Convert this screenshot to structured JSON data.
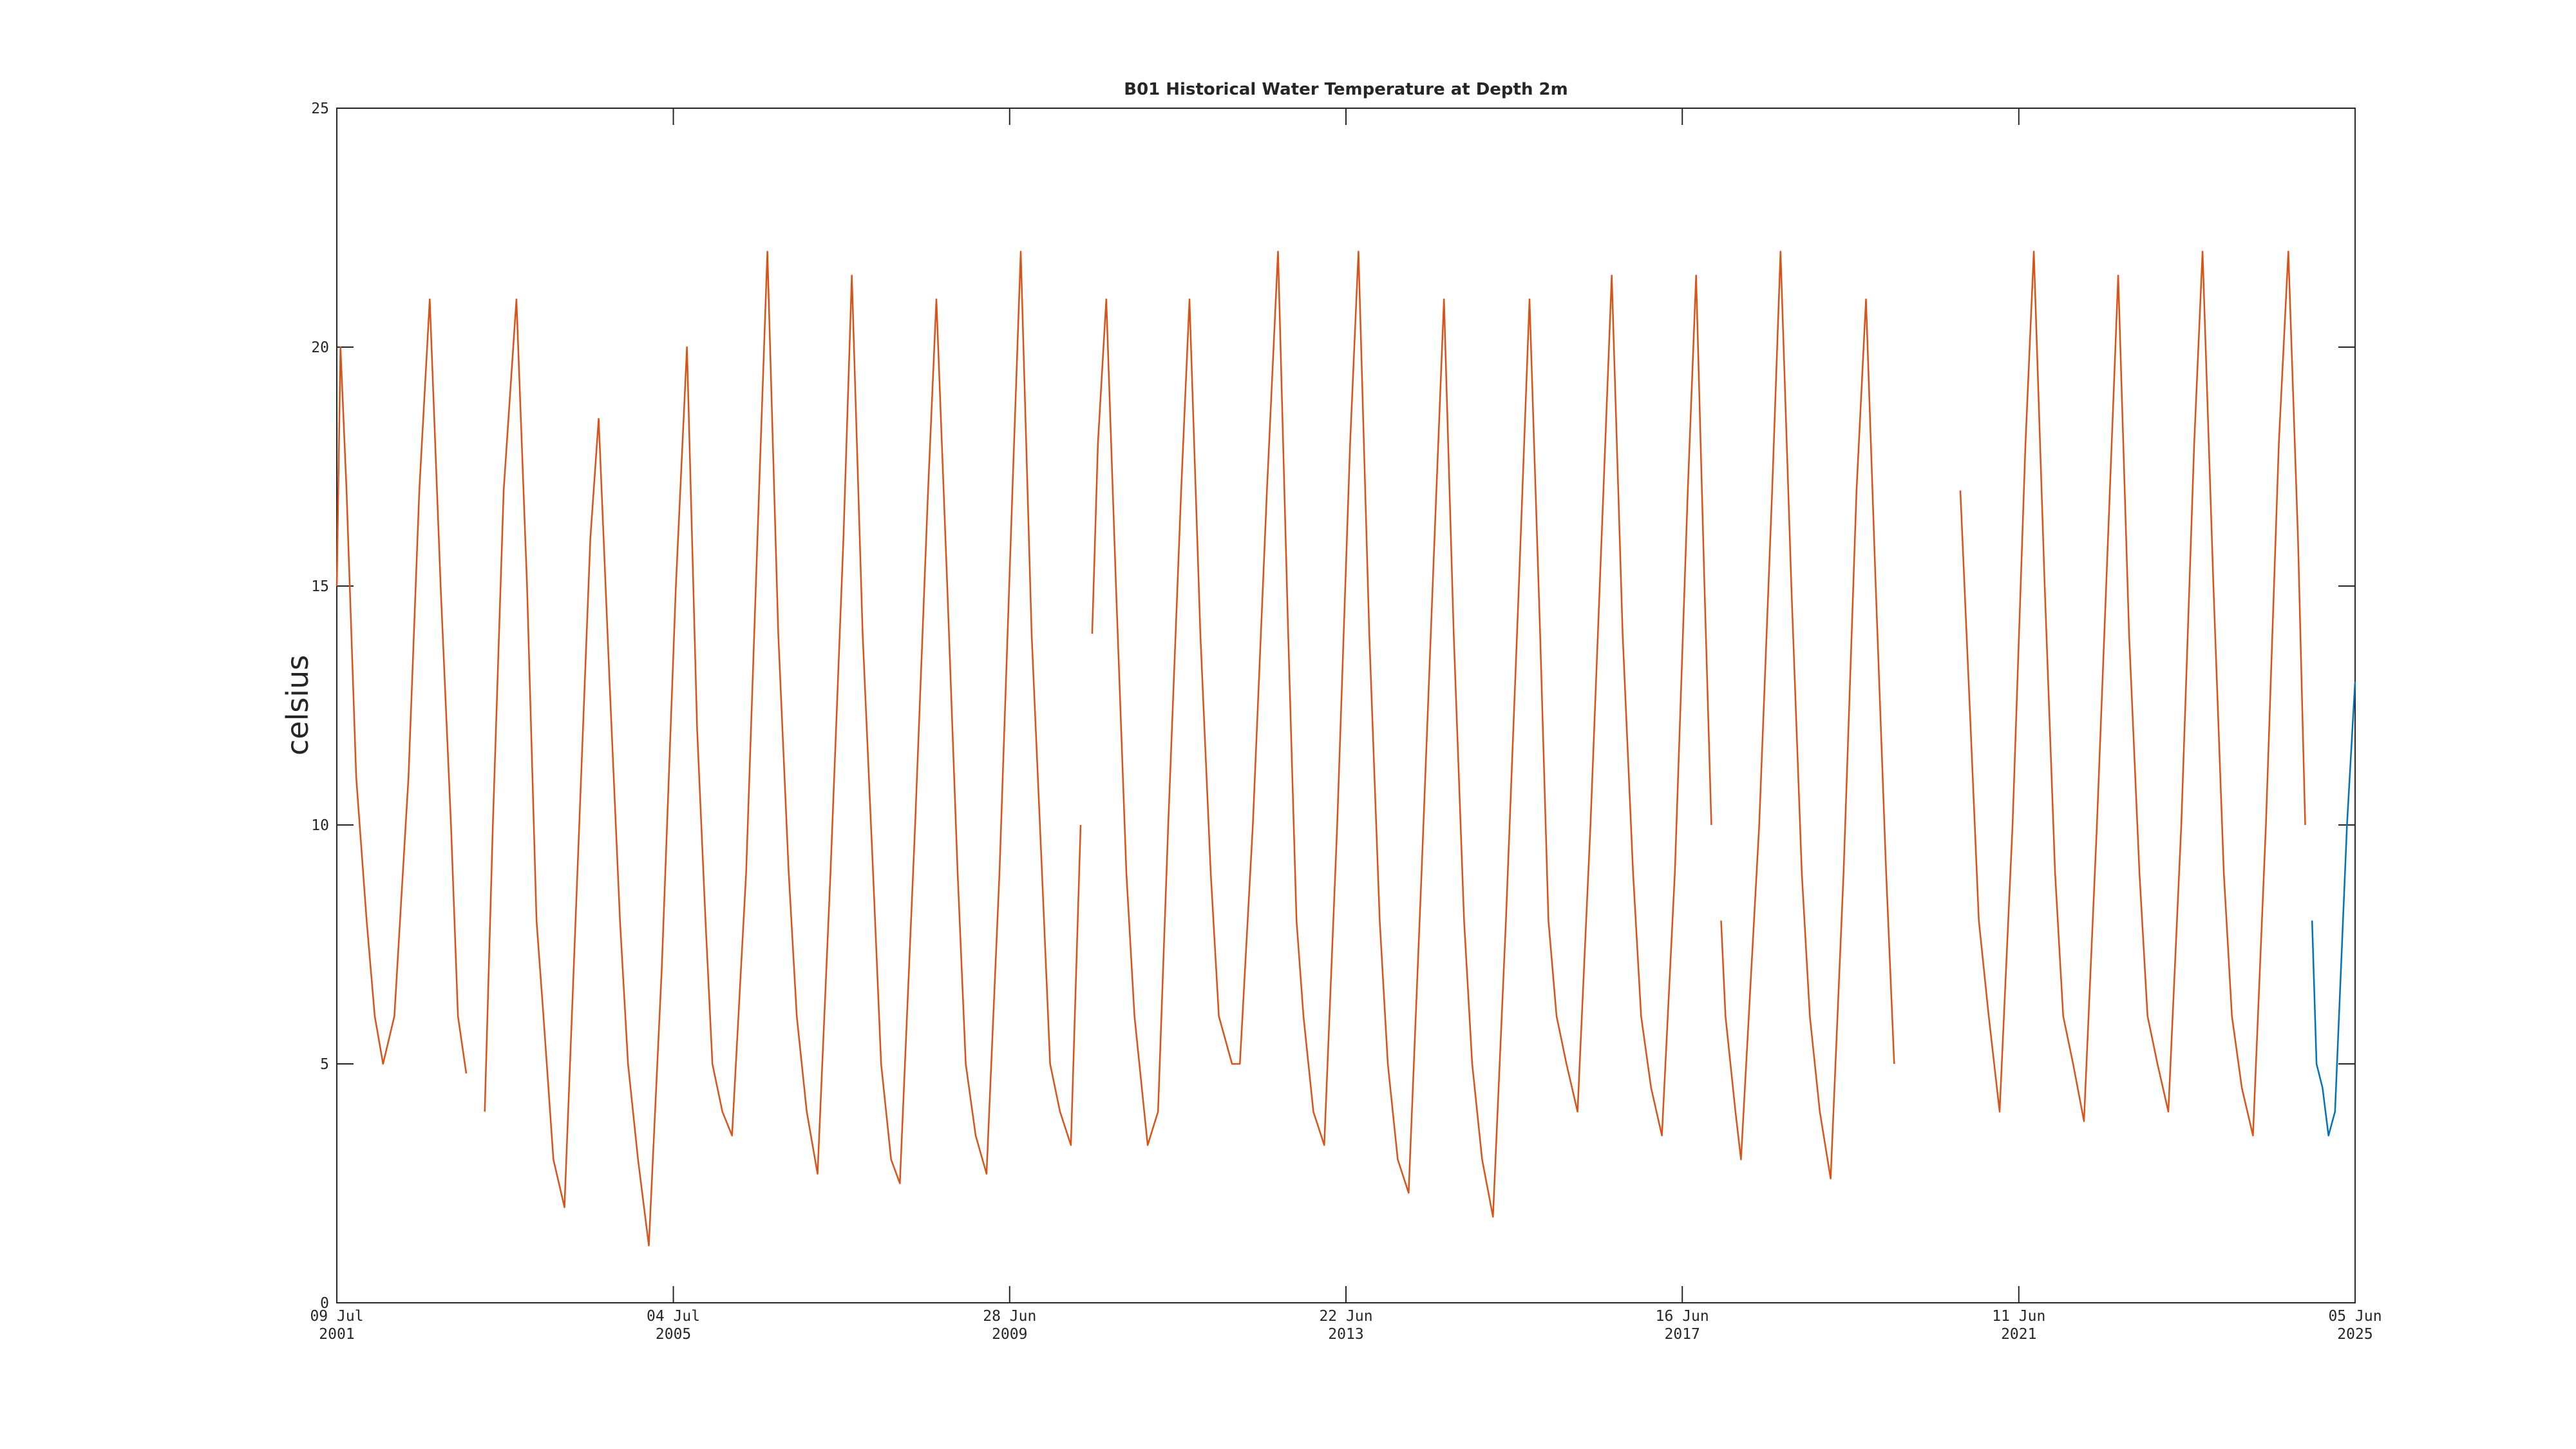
{
  "chart_data": {
    "type": "line",
    "title": "B01 Historical Water Temperature at Depth 2m",
    "ylabel": "celsius",
    "xlim": [
      "2001-07-09",
      "2025-06-05"
    ],
    "xticks": [
      {
        "value": "2001-07-09",
        "label": "09 Jul 2001"
      },
      {
        "value": "2005-07-04",
        "label": "04 Jul 2005"
      },
      {
        "value": "2009-06-28",
        "label": "28 Jun 2009"
      },
      {
        "value": "2013-06-22",
        "label": "22 Jun 2013"
      },
      {
        "value": "2017-06-16",
        "label": "16 Jun 2017"
      },
      {
        "value": "2021-06-11",
        "label": "11 Jun 2021"
      },
      {
        "value": "2025-06-05",
        "label": "05 Jun 2025"
      }
    ],
    "ylim": [
      0,
      25
    ],
    "yticks": [
      0,
      5,
      10,
      15,
      20,
      25
    ],
    "grid": false,
    "series": [
      {
        "color": "#d95319",
        "x": [
          "2001-07-09",
          "2001-07-25",
          "2001-08-20",
          "2001-10-01",
          "2001-11-15",
          "2001-12-20",
          "2002-01-25",
          "2002-03-15",
          "2002-05-15",
          "2002-07-01",
          "2002-08-15",
          "2002-10-01",
          "2002-11-15",
          "2002-12-15",
          "2003-01-20",
          "2003-02-15",
          "2003-04-10",
          "2003-05-15",
          "2003-07-01",
          "2003-08-25",
          "2003-10-10",
          "2003-11-20",
          "2003-12-20",
          "2004-02-01",
          "2004-03-20",
          "2004-05-15",
          "2004-07-10",
          "2004-08-15",
          "2004-10-01",
          "2004-11-15",
          "2004-12-20",
          "2005-02-01",
          "2005-03-20",
          "2005-05-15",
          "2005-07-15",
          "2005-09-01",
          "2005-10-15",
          "2005-11-20",
          "2005-12-20",
          "2006-02-01",
          "2006-03-15",
          "2006-05-15",
          "2006-07-10",
          "2006-08-15",
          "2006-10-01",
          "2006-11-15",
          "2006-12-20",
          "2007-02-01",
          "2007-03-20",
          "2007-05-15",
          "2007-07-10",
          "2007-08-15",
          "2007-10-01",
          "2007-11-15",
          "2007-12-20",
          "2008-02-01",
          "2008-03-10",
          "2008-05-15",
          "2008-07-10",
          "2008-08-15",
          "2008-10-01",
          "2008-11-15",
          "2008-12-20",
          "2009-02-01",
          "2009-03-20",
          "2009-05-15",
          "2009-07-10",
          "2009-08-15",
          "2009-10-01",
          "2009-11-15",
          "2009-12-20",
          "2010-02-01",
          "2010-03-20",
          "2010-05-01",
          "2010-06-01",
          "2010-06-20",
          "2010-07-15",
          "2010-08-20",
          "2010-10-01",
          "2010-11-15",
          "2010-12-20",
          "2011-02-15",
          "2011-04-01",
          "2011-05-15",
          "2011-07-10",
          "2011-08-15",
          "2011-10-01",
          "2011-11-15",
          "2011-12-20",
          "2012-02-15",
          "2012-03-20",
          "2012-05-15",
          "2012-07-15",
          "2012-09-01",
          "2012-10-15",
          "2012-11-20",
          "2012-12-20",
          "2013-02-01",
          "2013-03-20",
          "2013-05-15",
          "2013-07-10",
          "2013-08-15",
          "2013-10-01",
          "2013-11-15",
          "2013-12-20",
          "2014-02-01",
          "2014-03-20",
          "2014-05-15",
          "2014-07-10",
          "2014-08-20",
          "2014-10-01",
          "2014-11-15",
          "2014-12-20",
          "2015-02-01",
          "2015-03-20",
          "2015-05-15",
          "2015-07-10",
          "2015-08-25",
          "2015-10-10",
          "2015-11-15",
          "2015-12-20",
          "2016-02-01",
          "2016-03-20",
          "2016-05-15",
          "2016-07-10",
          "2016-08-15",
          "2016-10-01",
          "2016-11-15",
          "2016-12-20",
          "2017-02-01",
          "2017-03-20",
          "2017-05-15",
          "2017-07-10",
          "2017-08-15",
          "2017-09-20",
          "2017-10-20",
          "2017-11-05",
          "2017-12-01",
          "2017-12-20",
          "2018-02-01",
          "2018-02-25",
          "2018-05-15",
          "2018-07-10",
          "2018-08-15",
          "2018-10-01",
          "2018-11-15",
          "2018-12-20",
          "2019-02-01",
          "2019-03-20",
          "2019-05-15",
          "2019-07-10",
          "2019-08-20",
          "2019-10-01",
          "2019-11-15",
          "2019-12-20",
          "2020-01-20",
          "2020-10-01",
          "2020-11-15",
          "2020-12-20",
          "2021-02-01",
          "2021-03-20",
          "2021-05-15",
          "2021-07-10",
          "2021-08-15",
          "2021-10-01",
          "2021-11-15",
          "2021-12-20",
          "2022-02-01",
          "2022-03-20",
          "2022-05-15",
          "2022-07-10",
          "2022-08-15",
          "2022-10-01",
          "2022-11-15",
          "2022-12-20",
          "2023-02-01",
          "2023-03-20",
          "2023-05-15",
          "2023-07-10",
          "2023-08-15",
          "2023-10-01",
          "2023-11-15",
          "2023-12-20",
          "2024-02-01",
          "2024-03-20",
          "2024-05-15",
          "2024-07-10",
          "2024-08-20",
          "2024-10-01",
          "2024-11-01"
        ],
        "values": [
          15,
          20,
          17,
          11,
          8,
          6,
          5,
          6,
          11,
          17,
          21,
          15,
          10,
          6,
          4.8,
          null,
          4,
          10,
          17,
          21,
          15,
          8,
          6,
          3,
          2,
          9,
          16,
          18.5,
          13,
          8,
          5,
          3,
          1.2,
          7,
          15,
          20,
          12,
          8,
          5,
          4,
          3.5,
          9,
          17,
          22,
          14,
          9,
          6,
          4,
          2.7,
          9,
          16,
          21.5,
          14,
          9,
          5,
          3,
          2.5,
          10,
          17,
          21,
          15,
          9,
          5,
          3.5,
          2.7,
          9,
          17,
          22,
          14,
          9,
          5,
          4,
          3.3,
          10,
          null,
          14,
          18,
          21,
          15,
          9,
          6,
          3.3,
          4,
          10,
          17,
          21,
          14,
          9,
          6,
          5,
          5,
          10,
          17,
          22,
          14,
          8,
          6,
          4,
          3.3,
          10,
          18,
          22,
          14,
          8,
          5,
          3,
          2.3,
          9,
          16,
          21,
          14,
          8,
          5,
          3,
          1.8,
          8,
          15,
          21,
          14,
          8,
          6,
          5,
          4,
          10,
          17,
          21.5,
          14,
          9,
          6,
          4.5,
          3.5,
          9,
          17,
          21.5,
          15,
          10,
          null,
          8,
          6,
          4,
          3,
          10,
          17,
          22,
          15,
          9,
          6,
          4,
          2.6,
          9,
          17,
          21,
          15,
          9,
          5,
          null,
          17,
          12,
          8,
          6,
          4,
          10,
          18,
          22,
          15,
          9,
          6,
          5,
          3.8,
          10,
          17,
          21.5,
          14,
          9,
          6,
          5,
          4,
          10,
          18,
          22,
          15,
          9,
          6,
          4.5,
          3.5,
          10,
          18,
          22,
          16,
          10
        ]
      },
      {
        "color": "#0072bd",
        "x": [
          "2024-12-01",
          "2024-12-20",
          "2025-01-15",
          "2025-02-10",
          "2025-03-10",
          "2025-04-05",
          "2025-05-01",
          "2025-06-05"
        ],
        "values": [
          8,
          5,
          4.5,
          3.5,
          4,
          7,
          10,
          13
        ]
      }
    ]
  }
}
